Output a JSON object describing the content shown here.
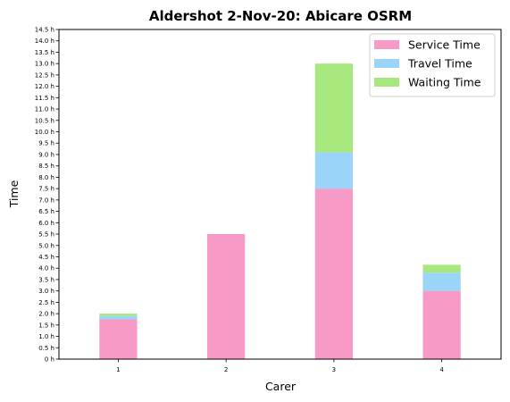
{
  "chart_data": {
    "type": "bar",
    "stacked": true,
    "title": "Aldershot 2-Nov-20: Abicare OSRM",
    "xlabel": "Carer",
    "ylabel": "Time",
    "categories": [
      "1",
      "2",
      "3",
      "4"
    ],
    "series": [
      {
        "name": "Service Time",
        "color": "#f79ac5",
        "values": [
          1.75,
          5.5,
          7.5,
          3.0
        ]
      },
      {
        "name": "Travel Time",
        "color": "#9ad4f9",
        "values": [
          0.15,
          0.0,
          1.6,
          0.8
        ]
      },
      {
        "name": "Waiting Time",
        "color": "#a6e87d",
        "values": [
          0.1,
          0.0,
          3.9,
          0.35
        ]
      }
    ],
    "ylim": [
      0,
      14.5
    ],
    "yticks": [
      "0 h",
      "0.5 h",
      "1.0 h",
      "1.5 h",
      "2.0 h",
      "2.5 h",
      "3.0 h",
      "3.5 h",
      "4.0 h",
      "4.5 h",
      "5.0 h",
      "5.5 h",
      "6.0 h",
      "6.5 h",
      "7.0 h",
      "7.5 h",
      "8.0 h",
      "8.5 h",
      "9.0 h",
      "9.5 h",
      "10.0 h",
      "10.5 h",
      "11.0 h",
      "11.5 h",
      "12.0 h",
      "12.5 h",
      "13.0 h",
      "13.5 h",
      "14.0 h",
      "14.5 h"
    ],
    "ytick_values": [
      0,
      0.5,
      1,
      1.5,
      2,
      2.5,
      3,
      3.5,
      4,
      4.5,
      5,
      5.5,
      6,
      6.5,
      7,
      7.5,
      8,
      8.5,
      9,
      9.5,
      10,
      10.5,
      11,
      11.5,
      12,
      12.5,
      13,
      13.5,
      14,
      14.5
    ],
    "grid": false,
    "legend_position": "top-right"
  }
}
